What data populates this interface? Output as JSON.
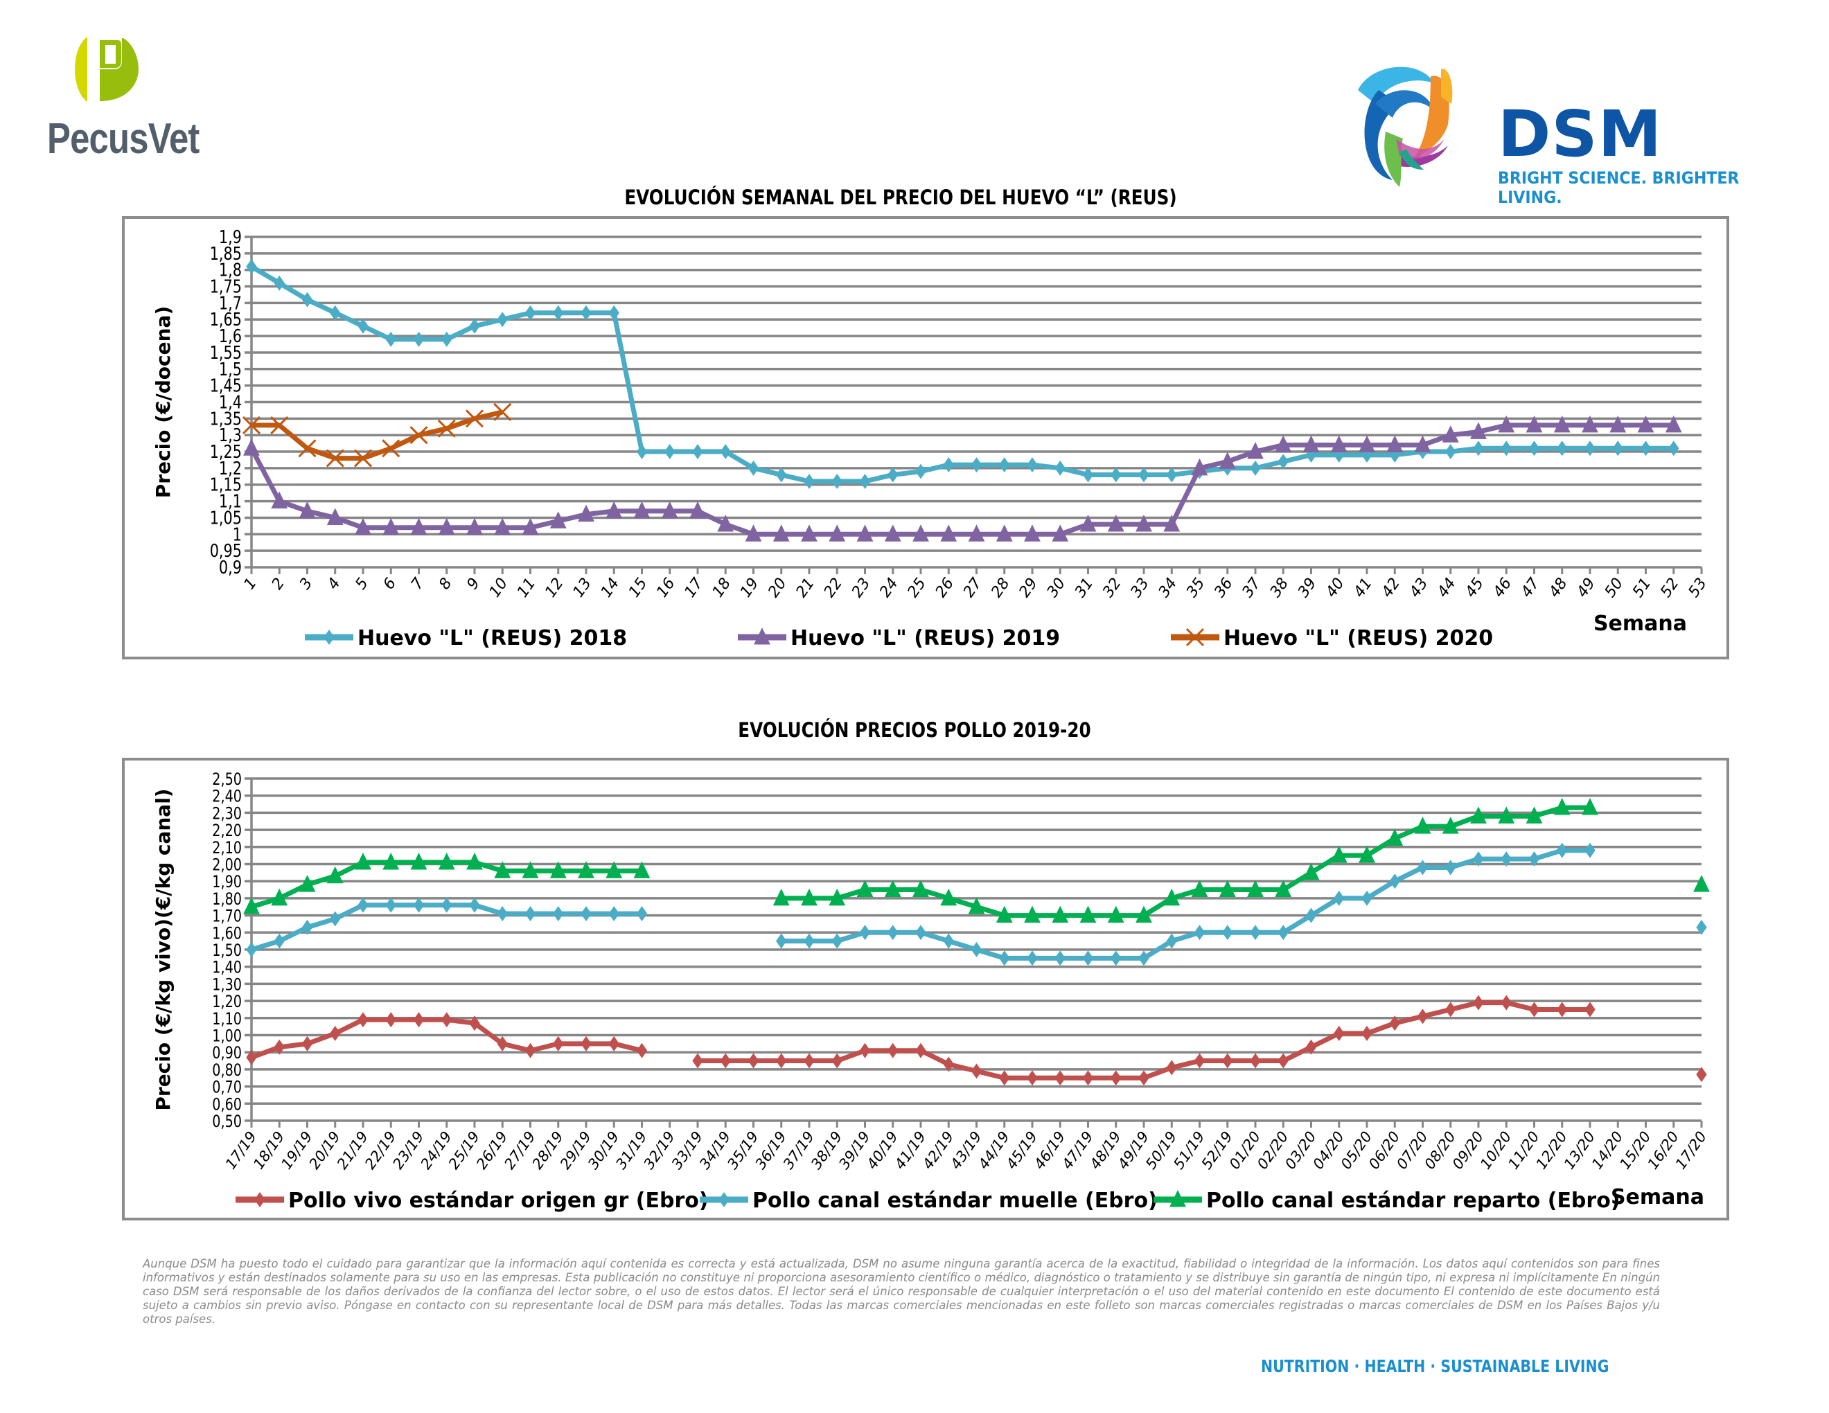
{
  "header": {
    "pecusvet_logo_text": "PecusVet",
    "dsm_logo_text": "DSM",
    "dsm_tagline": "BRIGHT SCIENCE. BRIGHTER LIVING."
  },
  "colors": {
    "huevo_2018": "#4bacc6",
    "huevo_2019": "#8064a2",
    "huevo_2020": "#c0580f",
    "pollo_vivo": "#c0504d",
    "pollo_muelle": "#4bacc6",
    "pollo_reparto": "#00b050",
    "grid": "#868686",
    "pecusvet_grey": "#525e6b",
    "dsm_blue": "#0f55a5",
    "dsm_light_blue": "#1a8fd0"
  },
  "chart_data": [
    {
      "type": "line",
      "title": "EVOLUCIÓN SEMANAL DEL PRECIO DEL HUEVO “L” (REUS)",
      "xlabel": "Semana",
      "ylabel": "Precio (€/docena)",
      "ylim": [
        0.9,
        1.9
      ],
      "ytick_step": 0.05,
      "ytick_labels": [
        "0,9",
        "0,95",
        "1",
        "1,05",
        "1,1",
        "1,15",
        "1,2",
        "1,25",
        "1,3",
        "1,35",
        "1,4",
        "1,45",
        "1,5",
        "1,55",
        "1,6",
        "1,65",
        "1,7",
        "1,75",
        "1,8",
        "1,85",
        "1,9"
      ],
      "x": [
        "1",
        "2",
        "3",
        "4",
        "5",
        "6",
        "7",
        "8",
        "9",
        "10",
        "11",
        "12",
        "13",
        "14",
        "15",
        "16",
        "17",
        "18",
        "19",
        "20",
        "21",
        "22",
        "23",
        "24",
        "25",
        "26",
        "27",
        "28",
        "29",
        "30",
        "31",
        "32",
        "33",
        "34",
        "35",
        "36",
        "37",
        "38",
        "39",
        "40",
        "41",
        "42",
        "43",
        "44",
        "45",
        "46",
        "47",
        "48",
        "49",
        "50",
        "51",
        "52",
        "53"
      ],
      "grid": true,
      "legend_position": "bottom",
      "series": [
        {
          "name": "Huevo \"L\" (REUS) 2018",
          "marker": "diamond",
          "values": [
            1.81,
            1.76,
            1.71,
            1.67,
            1.63,
            1.59,
            1.59,
            1.59,
            1.63,
            1.65,
            1.67,
            1.67,
            1.67,
            1.67,
            1.25,
            1.25,
            1.25,
            1.25,
            1.2,
            1.18,
            1.16,
            1.16,
            1.16,
            1.18,
            1.19,
            1.21,
            1.21,
            1.21,
            1.21,
            1.2,
            1.18,
            1.18,
            1.18,
            1.18,
            1.19,
            1.2,
            1.2,
            1.22,
            1.24,
            1.24,
            1.24,
            1.24,
            1.25,
            1.25,
            1.26,
            1.26,
            1.26,
            1.26,
            1.26,
            1.26,
            1.26,
            1.26,
            null
          ]
        },
        {
          "name": "Huevo \"L\" (REUS) 2019",
          "marker": "triangle",
          "values": [
            1.26,
            1.1,
            1.07,
            1.05,
            1.02,
            1.02,
            1.02,
            1.02,
            1.02,
            1.02,
            1.02,
            1.04,
            1.06,
            1.07,
            1.07,
            1.07,
            1.07,
            1.03,
            1.0,
            1.0,
            1.0,
            1.0,
            1.0,
            1.0,
            1.0,
            1.0,
            1.0,
            1.0,
            1.0,
            1.0,
            1.03,
            1.03,
            1.03,
            1.03,
            1.2,
            1.22,
            1.25,
            1.27,
            1.27,
            1.27,
            1.27,
            1.27,
            1.27,
            1.3,
            1.31,
            1.33,
            1.33,
            1.33,
            1.33,
            1.33,
            1.33,
            1.33,
            null
          ]
        },
        {
          "name": "Huevo \"L\" (REUS) 2020",
          "marker": "x",
          "values": [
            1.33,
            1.33,
            1.26,
            1.23,
            1.23,
            1.26,
            1.3,
            1.32,
            1.35,
            1.37,
            null,
            null,
            null,
            null,
            null,
            null,
            null,
            null,
            null,
            null,
            null,
            null,
            null,
            null,
            null,
            null,
            null,
            null,
            null,
            null,
            null,
            null,
            null,
            null,
            null,
            null,
            null,
            null,
            null,
            null,
            null,
            null,
            null,
            null,
            null,
            null,
            null,
            null,
            null,
            null,
            null,
            null,
            null
          ]
        }
      ]
    },
    {
      "type": "line",
      "title": "EVOLUCIÓN PRECIOS POLLO 2019-20",
      "xlabel": "Semana",
      "ylabel": "Precio (€/kg vivo)(€/kg canal)",
      "ylim": [
        0.5,
        2.5
      ],
      "ytick_step": 0.1,
      "ytick_labels": [
        "0,50",
        "0,60",
        "0,70",
        "0,80",
        "0,90",
        "1,00",
        "1,10",
        "1,20",
        "1,30",
        "1,40",
        "1,50",
        "1,60",
        "1,70",
        "1,80",
        "1,90",
        "2,00",
        "2,10",
        "2,20",
        "2,30",
        "2,40",
        "2,50"
      ],
      "x": [
        "17/19",
        "18/19",
        "19/19",
        "20/19",
        "21/19",
        "22/19",
        "23/19",
        "24/19",
        "25/19",
        "26/19",
        "27/19",
        "28/19",
        "29/19",
        "30/19",
        "31/19",
        "32/19",
        "33/19",
        "34/19",
        "35/19",
        "36/19",
        "37/19",
        "38/19",
        "39/19",
        "40/19",
        "41/19",
        "42/19",
        "43/19",
        "44/19",
        "45/19",
        "46/19",
        "47/19",
        "48/19",
        "49/19",
        "50/19",
        "51/19",
        "52/19",
        "01/20",
        "02/20",
        "03/20",
        "04/20",
        "05/20",
        "06/20",
        "07/20",
        "08/20",
        "09/20",
        "10/20",
        "11/20",
        "12/20",
        "13/20",
        "14/20",
        "15/20",
        "16/20",
        "17/20"
      ],
      "grid": true,
      "legend_position": "bottom",
      "series": [
        {
          "name": "Pollo vivo estándar origen gr (Ebro)",
          "marker": "diamond",
          "values": [
            0.87,
            0.93,
            0.95,
            1.01,
            1.09,
            1.09,
            1.09,
            1.09,
            1.07,
            0.95,
            0.91,
            0.95,
            0.95,
            0.95,
            0.91,
            null,
            0.85,
            0.85,
            0.85,
            0.85,
            0.85,
            0.85,
            0.91,
            0.91,
            0.91,
            0.83,
            0.79,
            0.75,
            0.75,
            0.75,
            0.75,
            0.75,
            0.75,
            0.81,
            0.85,
            0.85,
            0.85,
            0.85,
            0.93,
            1.01,
            1.01,
            1.07,
            1.11,
            1.15,
            1.19,
            1.19,
            1.15,
            1.15,
            1.15,
            null,
            null,
            null,
            0.77
          ]
        },
        {
          "name": "Pollo canal estándar muelle (Ebro)",
          "marker": "diamond",
          "values": [
            1.5,
            1.55,
            1.63,
            1.68,
            1.76,
            1.76,
            1.76,
            1.76,
            1.76,
            1.71,
            1.71,
            1.71,
            1.71,
            1.71,
            1.71,
            null,
            null,
            null,
            null,
            1.55,
            1.55,
            1.55,
            1.6,
            1.6,
            1.6,
            1.55,
            1.5,
            1.45,
            1.45,
            1.45,
            1.45,
            1.45,
            1.45,
            1.55,
            1.6,
            1.6,
            1.6,
            1.6,
            1.7,
            1.8,
            1.8,
            1.9,
            1.98,
            1.98,
            2.03,
            2.03,
            2.03,
            2.08,
            2.08,
            null,
            null,
            null,
            1.63
          ]
        },
        {
          "name": "Pollo canal estándar reparto (Ebro)",
          "marker": "triangle",
          "values": [
            1.75,
            1.8,
            1.88,
            1.93,
            2.01,
            2.01,
            2.01,
            2.01,
            2.01,
            1.96,
            1.96,
            1.96,
            1.96,
            1.96,
            1.96,
            null,
            null,
            null,
            null,
            1.8,
            1.8,
            1.8,
            1.85,
            1.85,
            1.85,
            1.8,
            1.75,
            1.7,
            1.7,
            1.7,
            1.7,
            1.7,
            1.7,
            1.8,
            1.85,
            1.85,
            1.85,
            1.85,
            1.95,
            2.05,
            2.05,
            2.15,
            2.22,
            2.22,
            2.28,
            2.28,
            2.28,
            2.33,
            2.33,
            null,
            null,
            null,
            1.88
          ]
        }
      ]
    }
  ],
  "disclaimer": "Aunque DSM ha puesto todo el cuidado para garantizar que la información aquí contenida es correcta y está actualizada, DSM no asume ninguna garantía acerca de la exactitud, fiabilidad o integridad de la información. Los datos aquí contenidos son para fines informativos y están destinados solamente para su uso en las empresas. Esta publicación no constituye ni proporciona asesoramiento científico o médico, diagnóstico o tratamiento y se distribuye sin garantía de ningún tipo, ni expresa ni implícitamente En ningún caso DSM será responsable de los daños derivados de la confianza del lector sobre, o el uso de estos datos. El lector será el único responsable de cualquier interpretación o el uso del material contenido en este documento El contenido de este documento está sujeto a cambios sin previo aviso. Póngase en contacto con su representante local de DSM para más detalles. Todas las marcas comerciales mencionadas en este folleto son marcas comerciales registradas o marcas comerciales de DSM en los Países Bajos y/u otros países.",
  "footer": {
    "tagline": "NUTRITION  ·  HEALTH  ·  SUSTAINABLE LIVING"
  }
}
